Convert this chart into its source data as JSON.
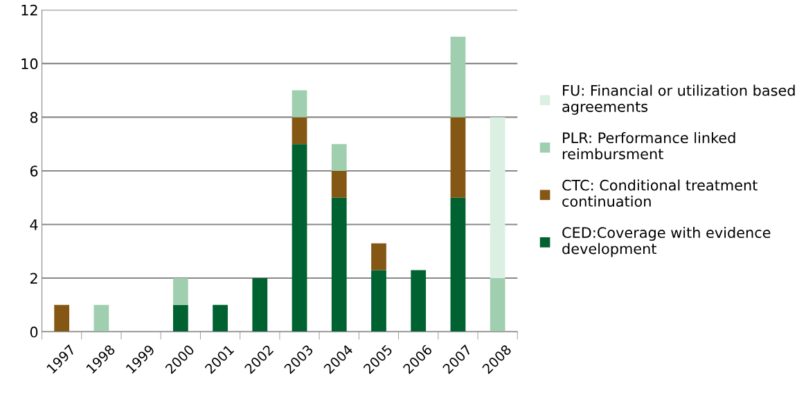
{
  "chart_data": {
    "type": "bar",
    "stacked": true,
    "categories": [
      "1997",
      "1998",
      "1999",
      "2000",
      "2001",
      "2002",
      "2003",
      "2004",
      "2005",
      "2006",
      "2007",
      "2008"
    ],
    "series": [
      {
        "name": "CED:Coverage with evidence development",
        "color": "#006131",
        "values": [
          0,
          0,
          0,
          1,
          1,
          2,
          7,
          5,
          2.3,
          2.3,
          5,
          0
        ]
      },
      {
        "name": "CTC: Conditional treatment continuation",
        "color": "#855714",
        "values": [
          1,
          0,
          0,
          0,
          0,
          0,
          1,
          1,
          1,
          0,
          3,
          0
        ]
      },
      {
        "name": "PLR: Performance linked reimbursment",
        "color": "#9fcfaf",
        "values": [
          0,
          1,
          0,
          1,
          0,
          0,
          1,
          1,
          0,
          0,
          3,
          2
        ]
      },
      {
        "name": "FU: Financial or utilization based agreements",
        "color": "#dcefe3",
        "values": [
          0,
          0,
          0,
          0,
          0,
          0,
          0,
          0,
          0,
          0,
          0,
          6
        ]
      }
    ],
    "ylim": [
      0,
      12
    ],
    "yticks": [
      0,
      2,
      4,
      6,
      8,
      10,
      12
    ],
    "grid": "y",
    "legend": "right"
  }
}
